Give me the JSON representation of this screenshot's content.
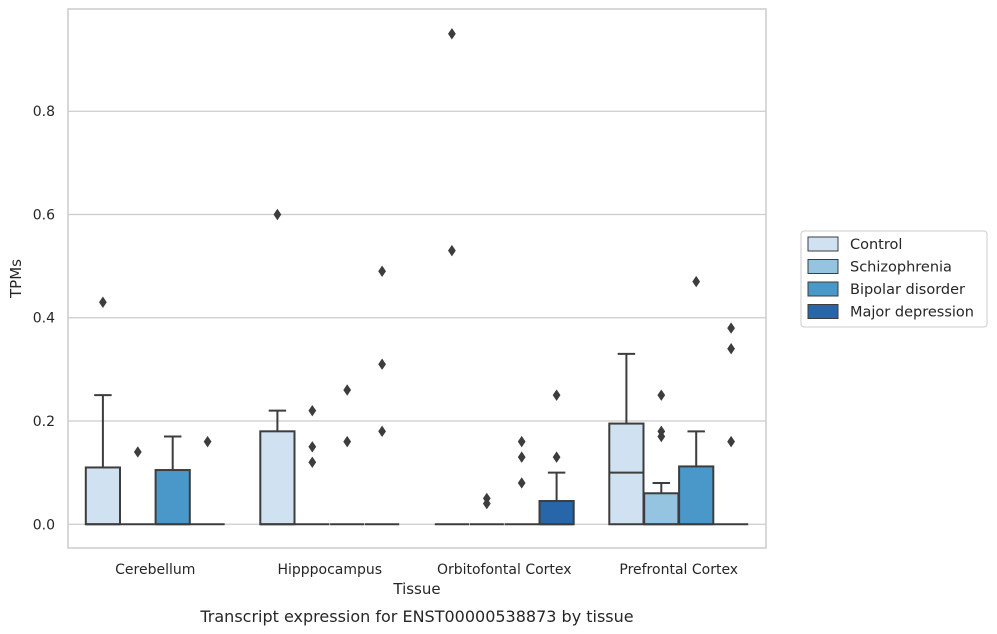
{
  "chart_data": {
    "type": "box",
    "title": "",
    "caption": "Transcript expression for ENST00000538873 by tissue",
    "xlabel": "Tissue",
    "ylabel": "TPMs",
    "ylim": [
      -0.046,
      0.998
    ],
    "yticks": [
      "0.0",
      "0.2",
      "0.4",
      "0.6",
      "0.8"
    ],
    "ytick_values": [
      0,
      0.2,
      0.4,
      0.6,
      0.8
    ],
    "grid": "horizontal",
    "legend_position": "right",
    "categories": [
      "Cerebellum",
      "Hipppocampus",
      "Orbitofontal Cortex",
      "Prefrontal Cortex"
    ],
    "series": [
      {
        "name": "Control",
        "color": "#d0e1f2",
        "boxes": [
          {
            "q1": 0,
            "median": 0,
            "q3": 0.11,
            "whisker_low": 0,
            "whisker_high": 0.25,
            "outliers": [
              0.43
            ]
          },
          {
            "q1": 0,
            "median": 0,
            "q3": 0.18,
            "whisker_low": 0,
            "whisker_high": 0.22,
            "outliers": [
              0.6
            ]
          },
          {
            "q1": 0,
            "median": 0,
            "q3": 0,
            "whisker_low": 0,
            "whisker_high": 0,
            "outliers": [
              0.95,
              0.53
            ]
          },
          {
            "q1": 0,
            "median": 0.1,
            "q3": 0.195,
            "whisker_low": 0,
            "whisker_high": 0.33,
            "outliers": []
          }
        ]
      },
      {
        "name": "Schizophrenia",
        "color": "#94c4df",
        "boxes": [
          {
            "q1": 0,
            "median": 0,
            "q3": 0,
            "whisker_low": 0,
            "whisker_high": 0,
            "outliers": [
              0.14
            ]
          },
          {
            "q1": 0,
            "median": 0,
            "q3": 0,
            "whisker_low": 0,
            "whisker_high": 0,
            "outliers": [
              0.22,
              0.15,
              0.12
            ]
          },
          {
            "q1": 0,
            "median": 0,
            "q3": 0,
            "whisker_low": 0,
            "whisker_high": 0,
            "outliers": [
              0.05,
              0.04
            ]
          },
          {
            "q1": 0,
            "median": 0,
            "q3": 0.06,
            "whisker_low": 0,
            "whisker_high": 0.08,
            "outliers": [
              0.25,
              0.18,
              0.17
            ]
          }
        ]
      },
      {
        "name": "Bipolar disorder",
        "color": "#4a98c9",
        "boxes": [
          {
            "q1": 0,
            "median": 0,
            "q3": 0.105,
            "whisker_low": 0,
            "whisker_high": 0.17,
            "outliers": []
          },
          {
            "q1": 0,
            "median": 0,
            "q3": 0,
            "whisker_low": 0,
            "whisker_high": 0,
            "outliers": [
              0.26,
              0.16
            ]
          },
          {
            "q1": 0,
            "median": 0,
            "q3": 0,
            "whisker_low": 0,
            "whisker_high": 0,
            "outliers": [
              0.16,
              0.13,
              0.08
            ]
          },
          {
            "q1": 0,
            "median": 0,
            "q3": 0.112,
            "whisker_low": 0,
            "whisker_high": 0.18,
            "outliers": [
              0.47
            ]
          }
        ]
      },
      {
        "name": "Major depression",
        "color": "#2666a9",
        "boxes": [
          {
            "q1": 0,
            "median": 0,
            "q3": 0,
            "whisker_low": 0,
            "whisker_high": 0,
            "outliers": [
              0.16
            ]
          },
          {
            "q1": 0,
            "median": 0,
            "q3": 0,
            "whisker_low": 0,
            "whisker_high": 0,
            "outliers": [
              0.49,
              0.31,
              0.18
            ]
          },
          {
            "q1": 0,
            "median": 0,
            "q3": 0.045,
            "whisker_low": 0,
            "whisker_high": 0.1,
            "outliers": [
              0.25,
              0.13
            ]
          },
          {
            "q1": 0,
            "median": 0,
            "q3": 0,
            "whisker_low": 0,
            "whisker_high": 0,
            "outliers": [
              0.38,
              0.34,
              0.16
            ]
          }
        ]
      }
    ]
  }
}
